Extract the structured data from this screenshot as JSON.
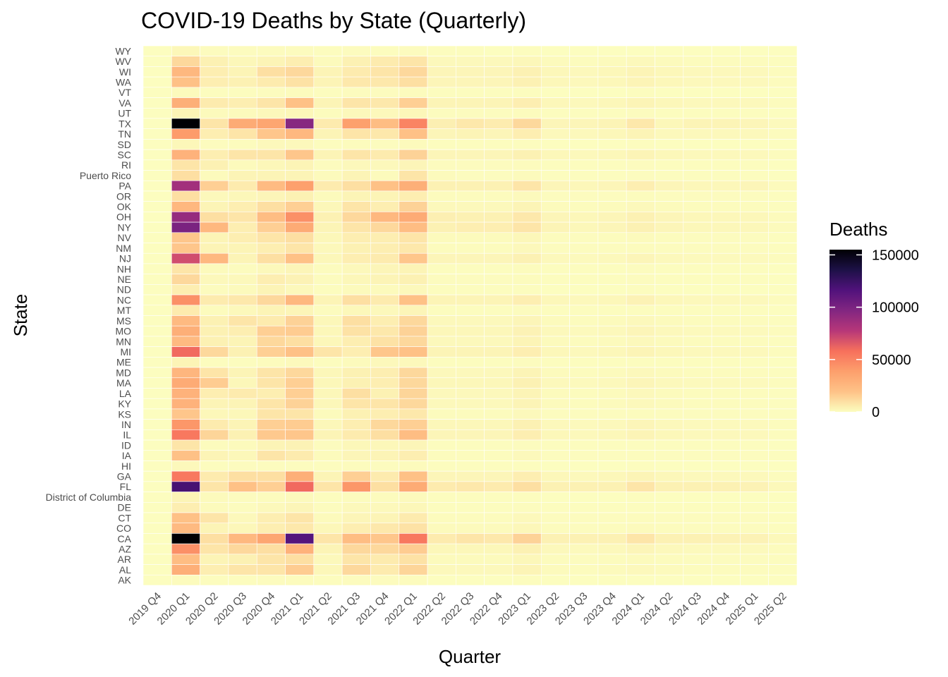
{
  "chart_data": {
    "type": "heatmap",
    "title": "COVID-19 Deaths by State (Quarterly)",
    "xlabel": "Quarter",
    "ylabel": "State",
    "legend": {
      "title": "Deaths",
      "placement": "right",
      "ticks": [
        "0",
        "50000",
        "100000",
        "150000"
      ],
      "min": 0,
      "max": 155000
    },
    "colorscale": "magma (reversed)",
    "grid": true,
    "x": [
      "2019 Q4",
      "2020 Q1",
      "2020 Q2",
      "2020 Q3",
      "2020 Q4",
      "2021 Q1",
      "2021 Q2",
      "2021 Q3",
      "2021 Q4",
      "2022 Q1",
      "2022 Q2",
      "2022 Q3",
      "2022 Q4",
      "2023 Q1",
      "2023 Q2",
      "2023 Q3",
      "2023 Q4",
      "2024 Q1",
      "2024 Q2",
      "2024 Q3",
      "2024 Q4",
      "2025 Q1",
      "2025 Q2"
    ],
    "y": [
      "WY",
      "WV",
      "WI",
      "WA",
      "VT",
      "VA",
      "UT",
      "TX",
      "TN",
      "SD",
      "SC",
      "RI",
      "Puerto Rico",
      "PA",
      "OR",
      "OK",
      "OH",
      "NY",
      "NV",
      "NM",
      "NJ",
      "NH",
      "NE",
      "ND",
      "NC",
      "MT",
      "MS",
      "MO",
      "MN",
      "MI",
      "ME",
      "MD",
      "MA",
      "LA",
      "KY",
      "KS",
      "IN",
      "IL",
      "ID",
      "IA",
      "HI",
      "GA",
      "FL",
      "District of Columbia",
      "DE",
      "CT",
      "CO",
      "CA",
      "AZ",
      "AR",
      "AL",
      "AK"
    ],
    "values": [
      [
        0,
        2000,
        500,
        500,
        500,
        500,
        300,
        500,
        300,
        500,
        200,
        200,
        100,
        200,
        100,
        100,
        100,
        100,
        100,
        100,
        100,
        100,
        50
      ],
      [
        0,
        12000,
        4000,
        2000,
        3000,
        5000,
        1000,
        4000,
        6000,
        8000,
        1500,
        1500,
        1500,
        2000,
        1000,
        800,
        1000,
        1500,
        1000,
        800,
        800,
        800,
        400
      ],
      [
        0,
        25000,
        5000,
        3000,
        10000,
        12000,
        3000,
        6000,
        8000,
        12000,
        2500,
        2500,
        2500,
        4000,
        2000,
        1500,
        2000,
        3000,
        2000,
        1500,
        1500,
        1500,
        800
      ],
      [
        0,
        20000,
        5000,
        4000,
        6000,
        9000,
        3000,
        7000,
        7000,
        10000,
        2500,
        2500,
        2500,
        4000,
        2000,
        1500,
        2000,
        3000,
        2000,
        1500,
        1500,
        1500,
        800
      ],
      [
        0,
        1000,
        300,
        300,
        500,
        700,
        200,
        500,
        500,
        800,
        200,
        200,
        200,
        300,
        100,
        100,
        100,
        200,
        100,
        100,
        100,
        100,
        50
      ],
      [
        0,
        30000,
        6000,
        5000,
        8000,
        20000,
        3000,
        8000,
        7000,
        15000,
        3000,
        3000,
        3000,
        5000,
        2000,
        1500,
        2000,
        3000,
        2000,
        1500,
        1500,
        1500,
        800
      ],
      [
        0,
        3000,
        1000,
        1000,
        1500,
        2000,
        600,
        1500,
        1500,
        2000,
        500,
        500,
        500,
        700,
        300,
        300,
        300,
        500,
        300,
        300,
        300,
        300,
        150
      ],
      [
        0,
        155000,
        8000,
        32000,
        35000,
        95000,
        6000,
        38000,
        22000,
        50000,
        4500,
        7000,
        5500,
        12000,
        2500,
        2500,
        3000,
        7000,
        2000,
        3000,
        3000,
        2500,
        1200
      ],
      [
        0,
        40000,
        5000,
        8000,
        18000,
        25000,
        3000,
        8000,
        7000,
        20000,
        2500,
        3000,
        2500,
        5000,
        1500,
        1500,
        2000,
        3000,
        1500,
        1500,
        1500,
        1500,
        700
      ],
      [
        0,
        2000,
        500,
        800,
        1500,
        1500,
        300,
        700,
        500,
        1000,
        200,
        200,
        200,
        400,
        100,
        100,
        100,
        200,
        100,
        100,
        100,
        100,
        50
      ],
      [
        0,
        28000,
        5000,
        8000,
        8000,
        18000,
        3000,
        8000,
        6000,
        14000,
        2500,
        2500,
        2500,
        4000,
        2000,
        1500,
        2000,
        3000,
        2000,
        1500,
        1500,
        1500,
        800
      ],
      [
        0,
        8000,
        4000,
        1000,
        2000,
        3000,
        500,
        1500,
        1500,
        2500,
        500,
        500,
        500,
        800,
        300,
        300,
        300,
        500,
        300,
        300,
        300,
        300,
        150
      ],
      [
        0,
        10000,
        1000,
        3000,
        3000,
        3000,
        1000,
        3000,
        1000,
        8000,
        1000,
        500,
        500,
        1000,
        300,
        300,
        300,
        500,
        300,
        300,
        300,
        300,
        150
      ],
      [
        0,
        85000,
        15000,
        6000,
        23000,
        38000,
        6000,
        10000,
        20000,
        30000,
        4000,
        4000,
        4000,
        8000,
        2500,
        2000,
        2500,
        5000,
        2500,
        2000,
        2000,
        2500,
        1000
      ],
      [
        0,
        10000,
        1500,
        2000,
        2500,
        4000,
        1000,
        3000,
        3000,
        5000,
        800,
        800,
        800,
        1200,
        500,
        500,
        500,
        800,
        500,
        500,
        500,
        500,
        250
      ],
      [
        0,
        25000,
        3000,
        5000,
        10000,
        15000,
        2000,
        8000,
        5000,
        14000,
        1500,
        1500,
        1500,
        3000,
        1000,
        800,
        1000,
        1500,
        1000,
        800,
        800,
        800,
        400
      ],
      [
        0,
        90000,
        10000,
        8000,
        22000,
        45000,
        4000,
        12000,
        25000,
        32000,
        4500,
        4000,
        4000,
        7000,
        2500,
        2000,
        2500,
        4000,
        2500,
        2000,
        2000,
        2000,
        1000
      ],
      [
        0,
        100000,
        25000,
        5000,
        15000,
        32000,
        3000,
        8000,
        12000,
        22000,
        4000,
        5000,
        5000,
        8000,
        3000,
        2000,
        2500,
        4000,
        2500,
        2000,
        2000,
        2000,
        1000
      ],
      [
        0,
        18000,
        3000,
        5000,
        8000,
        10000,
        2000,
        5000,
        5000,
        8000,
        1000,
        1000,
        1000,
        2000,
        600,
        500,
        600,
        1000,
        600,
        500,
        500,
        500,
        250
      ],
      [
        0,
        18000,
        3000,
        3000,
        5000,
        8000,
        1500,
        4000,
        5000,
        7000,
        800,
        800,
        800,
        1500,
        500,
        500,
        500,
        800,
        500,
        500,
        500,
        500,
        250
      ],
      [
        0,
        70000,
        25000,
        3000,
        10000,
        20000,
        2000,
        5000,
        6000,
        18000,
        2500,
        2500,
        2500,
        4000,
        1500,
        1200,
        1500,
        2500,
        1500,
        1200,
        1200,
        1200,
        600
      ],
      [
        0,
        8000,
        1000,
        500,
        1500,
        2500,
        500,
        1500,
        2500,
        3000,
        400,
        400,
        400,
        700,
        300,
        200,
        300,
        500,
        300,
        200,
        200,
        200,
        100
      ],
      [
        0,
        12000,
        1500,
        1500,
        5000,
        3500,
        500,
        2000,
        3000,
        4000,
        500,
        500,
        500,
        800,
        300,
        300,
        300,
        500,
        300,
        300,
        300,
        300,
        150
      ],
      [
        0,
        5000,
        500,
        1000,
        3000,
        1500,
        200,
        1000,
        1000,
        1500,
        200,
        200,
        200,
        300,
        100,
        100,
        100,
        200,
        100,
        100,
        100,
        100,
        50
      ],
      [
        0,
        45000,
        6000,
        7000,
        12000,
        25000,
        3000,
        10000,
        6000,
        20000,
        3000,
        3000,
        3000,
        5000,
        2000,
        1500,
        2000,
        3500,
        2000,
        1500,
        1500,
        1500,
        800
      ],
      [
        0,
        6000,
        800,
        1500,
        3000,
        2500,
        500,
        1800,
        1500,
        2500,
        300,
        300,
        300,
        500,
        200,
        200,
        200,
        300,
        200,
        200,
        200,
        200,
        100
      ],
      [
        0,
        24000,
        4000,
        8000,
        6000,
        14000,
        2000,
        10000,
        5000,
        12000,
        1500,
        1500,
        1500,
        2500,
        1000,
        800,
        1000,
        1500,
        1000,
        800,
        800,
        800,
        400
      ],
      [
        0,
        30000,
        4000,
        5000,
        15000,
        16000,
        2000,
        9000,
        7000,
        14000,
        2000,
        2000,
        2000,
        3500,
        1500,
        1200,
        1500,
        2500,
        1500,
        1200,
        1200,
        1200,
        600
      ],
      [
        0,
        24000,
        4000,
        3000,
        12000,
        10000,
        2000,
        5000,
        9000,
        12000,
        1500,
        1500,
        1500,
        3000,
        1000,
        800,
        1000,
        1500,
        1000,
        800,
        800,
        800,
        400
      ],
      [
        0,
        60000,
        12000,
        4000,
        15000,
        20000,
        8000,
        5000,
        18000,
        20000,
        3000,
        3000,
        3000,
        5000,
        2000,
        1500,
        2000,
        3000,
        2000,
        1500,
        1500,
        1500,
        800
      ],
      [
        0,
        3000,
        400,
        300,
        800,
        1200,
        300,
        1000,
        1500,
        1500,
        300,
        300,
        300,
        500,
        200,
        200,
        200,
        300,
        200,
        200,
        200,
        200,
        100
      ],
      [
        0,
        26000,
        8000,
        3000,
        8000,
        12000,
        2000,
        4000,
        5000,
        12000,
        1500,
        1500,
        1500,
        3000,
        1000,
        800,
        1000,
        1500,
        1000,
        800,
        800,
        800,
        400
      ],
      [
        0,
        32000,
        16000,
        2000,
        8000,
        15000,
        2000,
        4000,
        5000,
        12000,
        2000,
        2000,
        2000,
        4000,
        1500,
        1200,
        1500,
        2500,
        1500,
        1200,
        1200,
        1200,
        600
      ],
      [
        0,
        28000,
        5000,
        6000,
        5000,
        15000,
        2000,
        10000,
        4000,
        13000,
        1500,
        1500,
        1500,
        3000,
        1000,
        800,
        1000,
        1500,
        1000,
        800,
        800,
        800,
        400
      ],
      [
        0,
        28000,
        3000,
        3000,
        8000,
        14000,
        2000,
        8000,
        8000,
        12000,
        1500,
        1500,
        1500,
        3000,
        1000,
        800,
        1000,
        1500,
        1000,
        800,
        800,
        800,
        400
      ],
      [
        0,
        18000,
        2000,
        2000,
        8000,
        8000,
        1000,
        4000,
        5000,
        7000,
        800,
        800,
        800,
        1500,
        500,
        500,
        500,
        800,
        500,
        500,
        500,
        500,
        250
      ],
      [
        0,
        42000,
        6000,
        3000,
        15000,
        16000,
        2000,
        5000,
        12000,
        15000,
        2000,
        2000,
        2000,
        4000,
        1500,
        1200,
        1500,
        2500,
        1500,
        1200,
        1200,
        1200,
        600
      ],
      [
        0,
        55000,
        13000,
        4000,
        17000,
        18000,
        3000,
        6000,
        10000,
        22000,
        2500,
        2500,
        2500,
        5000,
        2000,
        1500,
        2000,
        3000,
        2000,
        1500,
        1500,
        1500,
        800
      ],
      [
        0,
        8000,
        800,
        1000,
        3000,
        3500,
        500,
        2000,
        2000,
        2500,
        300,
        300,
        300,
        500,
        200,
        200,
        200,
        300,
        200,
        200,
        200,
        200,
        100
      ],
      [
        0,
        20000,
        3000,
        2000,
        8000,
        6000,
        1000,
        2500,
        3000,
        5000,
        800,
        800,
        800,
        1500,
        500,
        500,
        500,
        800,
        500,
        500,
        500,
        500,
        250
      ],
      [
        0,
        1500,
        300,
        500,
        500,
        500,
        200,
        600,
        500,
        1000,
        200,
        200,
        200,
        300,
        100,
        100,
        100,
        200,
        100,
        100,
        100,
        100,
        50
      ],
      [
        0,
        55000,
        6000,
        10000,
        10000,
        30000,
        3000,
        15000,
        6000,
        20000,
        2500,
        2500,
        2500,
        5000,
        2000,
        1500,
        2000,
        3000,
        2000,
        1500,
        1500,
        1500,
        800
      ],
      [
        0,
        120000,
        8000,
        20000,
        15000,
        60000,
        8000,
        42000,
        10000,
        32000,
        6000,
        7000,
        6000,
        10000,
        4000,
        4000,
        4000,
        8000,
        4000,
        4000,
        4000,
        3500,
        1800
      ],
      [
        0,
        3000,
        1000,
        500,
        800,
        1200,
        300,
        800,
        700,
        1200,
        200,
        200,
        200,
        300,
        100,
        100,
        100,
        200,
        100,
        100,
        100,
        100,
        50
      ],
      [
        0,
        5000,
        1000,
        500,
        1500,
        2500,
        500,
        1500,
        1500,
        2000,
        300,
        300,
        300,
        500,
        200,
        200,
        200,
        300,
        200,
        200,
        200,
        200,
        100
      ],
      [
        0,
        20000,
        8000,
        1500,
        5000,
        8000,
        1000,
        2500,
        3000,
        6000,
        800,
        800,
        800,
        1500,
        500,
        500,
        500,
        800,
        500,
        500,
        500,
        500,
        250
      ],
      [
        0,
        24000,
        3000,
        2000,
        5000,
        7000,
        2000,
        5000,
        7000,
        9000,
        1000,
        1000,
        1000,
        2000,
        600,
        500,
        600,
        1000,
        600,
        500,
        500,
        500,
        250
      ],
      [
        0,
        155000,
        10000,
        25000,
        35000,
        115000,
        8000,
        22000,
        18000,
        55000,
        6000,
        8000,
        7000,
        14000,
        4000,
        4000,
        4000,
        8000,
        4000,
        4000,
        3500,
        3500,
        1800
      ],
      [
        0,
        45000,
        8000,
        12000,
        10000,
        28000,
        3000,
        12000,
        12000,
        16000,
        2000,
        2000,
        2000,
        4000,
        1500,
        1200,
        1500,
        2500,
        1500,
        1200,
        1200,
        1200,
        600
      ],
      [
        0,
        22000,
        3000,
        4000,
        8000,
        10000,
        1500,
        8000,
        6000,
        9000,
        1000,
        1000,
        1000,
        2000,
        600,
        500,
        600,
        1000,
        600,
        500,
        500,
        500,
        250
      ],
      [
        0,
        30000,
        5000,
        8000,
        8000,
        16000,
        2000,
        12000,
        6000,
        13000,
        1500,
        1500,
        1500,
        3000,
        1000,
        800,
        1000,
        1500,
        1000,
        800,
        800,
        800,
        400
      ],
      [
        0,
        800,
        300,
        300,
        500,
        600,
        200,
        500,
        500,
        700,
        100,
        100,
        100,
        200,
        50,
        50,
        50,
        100,
        50,
        50,
        50,
        50,
        25
      ]
    ]
  }
}
